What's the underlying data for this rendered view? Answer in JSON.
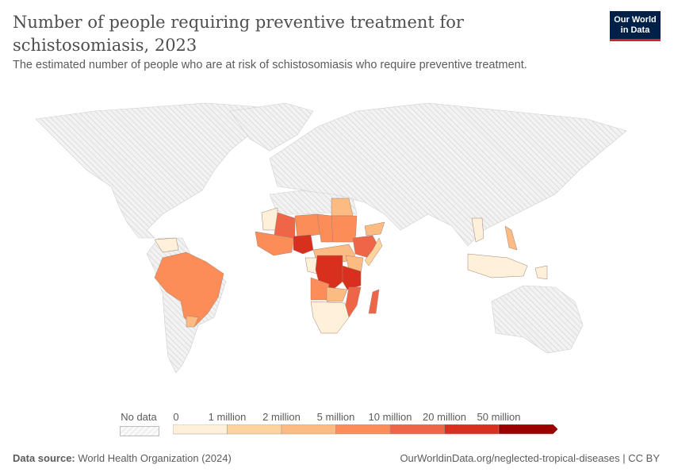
{
  "header": {
    "title": "Number of people requiring preventive treatment for schistosomiasis, 2023",
    "subtitle": "The estimated number of people who are at risk of schistosomiasis who require preventive treatment.",
    "logo": "Our World in Data"
  },
  "legend": {
    "no_data_label": "No data",
    "ticks": [
      "0",
      "1 million",
      "2 million",
      "5 million",
      "10 million",
      "20 million",
      "50 million"
    ],
    "colors": [
      "#fef0d9",
      "#fdd49e",
      "#fdbb84",
      "#fc8d59",
      "#ef6548",
      "#d7301f",
      "#990000"
    ]
  },
  "footer": {
    "source_label": "Data source:",
    "source": "World Health Organization (2024)",
    "link": "OurWorldinData.org/neglected-tropical-diseases | CC BY"
  }
}
